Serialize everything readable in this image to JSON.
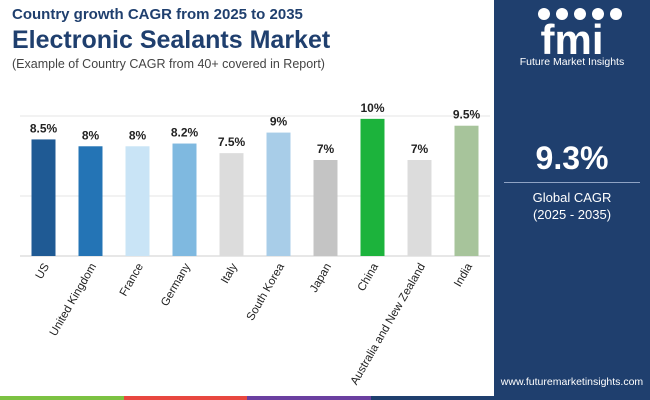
{
  "header": {
    "supertitle": "Country growth CAGR from 2025 to 2035",
    "title": "Electronic Sealants Market",
    "subtitle": "(Example of Country CAGR from 40+ covered in Report)"
  },
  "brand": {
    "logo_letters": "fmi",
    "name": "Future Market Insights",
    "website": "www.futuremarketinsights.com",
    "color": "#1f3f6e"
  },
  "highlight": {
    "value": "9.3%",
    "label_line1": "Global CAGR",
    "label_line2": "(2025 - 2035)"
  },
  "bottom_bar_colors": [
    "#7cc242",
    "#e8473f",
    "#6b3fa0",
    "#1f3f6e"
  ],
  "chart_data": {
    "type": "bar",
    "categories": [
      "US",
      "United Kingdom",
      "France",
      "Germany",
      "Italy",
      "South Korea",
      "Japan",
      "China",
      "Australia and New Zealand",
      "India"
    ],
    "values": [
      8.5,
      8,
      8,
      8.2,
      7.5,
      9,
      7,
      10,
      7,
      9.5
    ],
    "data_labels": [
      "8.5%",
      "8%",
      "8%",
      "8.2%",
      "7.5%",
      "9%",
      "7%",
      "10%",
      "7%",
      "9.5%"
    ],
    "colors": [
      "#1f5a94",
      "#2474b5",
      "#c9e4f6",
      "#7fb9e0",
      "#dcdcdc",
      "#a8cde8",
      "#c4c4c4",
      "#1cb33c",
      "#dcdcdc",
      "#a7c49b"
    ],
    "ylim": [
      0,
      10.5
    ],
    "grid": true
  }
}
